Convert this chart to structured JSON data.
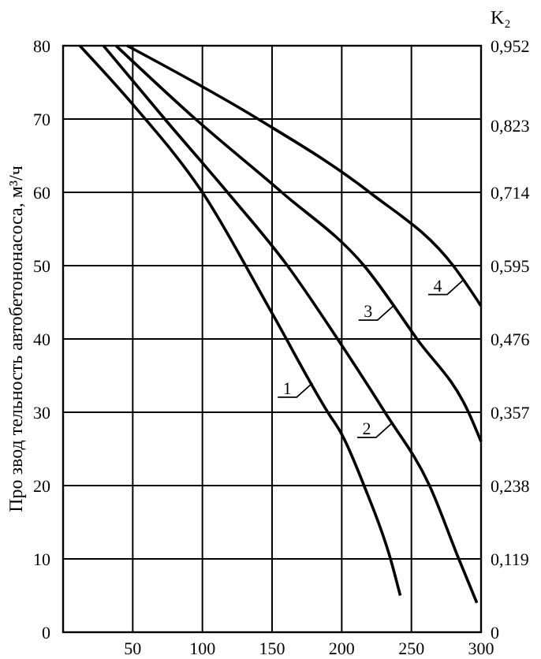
{
  "chart_data": {
    "type": "line",
    "ylabel": "Про звод тельность автобетононасоса, м³/ч",
    "y2label": "K₂",
    "xlim": [
      0,
      300
    ],
    "xticks": [
      50,
      100,
      150,
      200,
      250,
      300
    ],
    "ylim": [
      0,
      80
    ],
    "yticks": [
      0,
      10,
      20,
      30,
      40,
      50,
      60,
      70,
      80
    ],
    "y2lim": [
      0,
      0.952
    ],
    "y2ticks": [
      0,
      {
        "value": 0.119,
        "label": "0,119"
      },
      {
        "value": 0.238,
        "label": "0,238"
      },
      {
        "value": 0.357,
        "label": "0,357"
      },
      {
        "value": 0.476,
        "label": "0,476"
      },
      {
        "value": 0.595,
        "label": "0,595"
      },
      {
        "value": 0.714,
        "label": "0,714"
      },
      {
        "value": 0.823,
        "label": "0,823"
      },
      {
        "value": 0.952,
        "label": "0,952"
      }
    ],
    "grid": true,
    "marker": "none",
    "line_style": "solid",
    "series": [
      {
        "color": "#000000",
        "x": [
          12,
          50,
          100,
          150,
          190,
          200,
          216,
          235,
          242
        ],
        "values": [
          80,
          72,
          60,
          43.5,
          30,
          27,
          20,
          10,
          5
        ]
      },
      {
        "color": "#000000",
        "x": [
          29,
          73,
          118,
          161,
          197,
          231,
          263,
          284,
          297
        ],
        "values": [
          80,
          70,
          60,
          50,
          40,
          30,
          20,
          10,
          4
        ]
      },
      {
        "color": "#000000",
        "x": [
          38,
          95,
          157,
          216,
          254,
          291,
          300
        ],
        "values": [
          80,
          70,
          60,
          50,
          40,
          30,
          26
        ]
      },
      {
        "color": "#000000",
        "x": [
          46,
          140,
          220,
          280,
          300
        ],
        "values": [
          80,
          70,
          60,
          50,
          44.5
        ]
      }
    ],
    "annotations": [
      {
        "text": "1",
        "x": 179,
        "y": 34
      },
      {
        "text": "2",
        "x": 236,
        "y": 28.5
      },
      {
        "text": "3",
        "x": 237,
        "y": 44.5
      },
      {
        "text": "4",
        "x": 287,
        "y": 48
      }
    ]
  }
}
